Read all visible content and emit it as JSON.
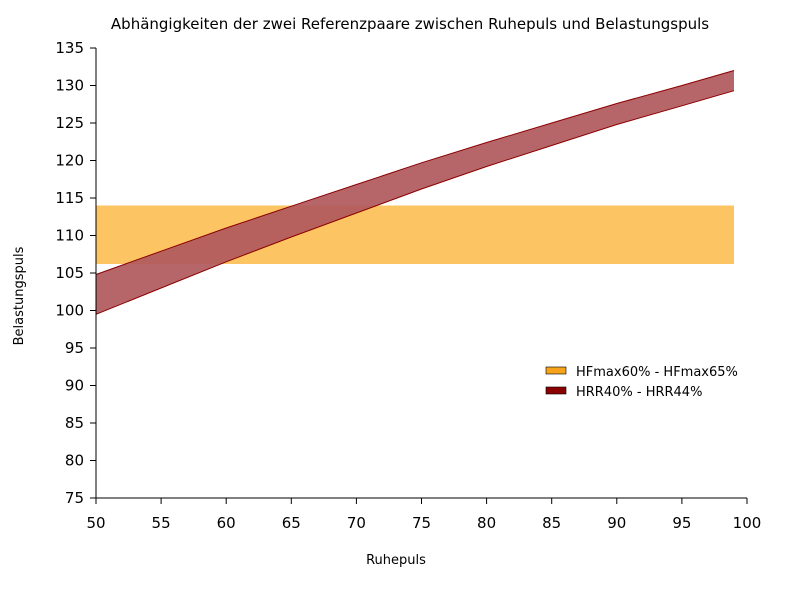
{
  "chart_data": {
    "type": "area",
    "title": "Abhängigkeiten der zwei Referenzpaare zwischen Ruhepuls und Belastungspuls",
    "xlabel": "Ruhepuls",
    "ylabel": "Belastungspuls",
    "xlim": [
      50,
      100
    ],
    "ylim": [
      75,
      135
    ],
    "x_ticks": [
      "50",
      "55",
      "60",
      "65",
      "70",
      "75",
      "80",
      "85",
      "90",
      "95",
      "100"
    ],
    "y_ticks": [
      "135",
      "130",
      "125",
      "120",
      "115",
      "110",
      "105",
      "100",
      "95",
      "90",
      "85",
      "80",
      "75"
    ],
    "grid": false,
    "legend_position": "right",
    "series": [
      {
        "name": "HFmax60% - HFmax65%",
        "color": "#fcc462",
        "legend_color": "#f7a21b",
        "x": [
          50,
          99
        ],
        "lower": [
          106.2,
          106.2
        ],
        "upper": [
          114.0,
          114.0
        ]
      },
      {
        "name": "HRR40% - HRR44%",
        "color": "#b0585c",
        "legend_color": "#8b0000",
        "edge_color": "#8b0000",
        "x": [
          50,
          55,
          60,
          65,
          70,
          75,
          80,
          85,
          90,
          95,
          99
        ],
        "lower": [
          99.5,
          103.0,
          106.5,
          109.8,
          113.0,
          116.2,
          119.2,
          122.0,
          124.8,
          127.3,
          129.3
        ],
        "upper": [
          104.8,
          107.9,
          111.0,
          113.9,
          116.8,
          119.7,
          122.4,
          125.0,
          127.6,
          130.0,
          132.0
        ]
      }
    ]
  }
}
